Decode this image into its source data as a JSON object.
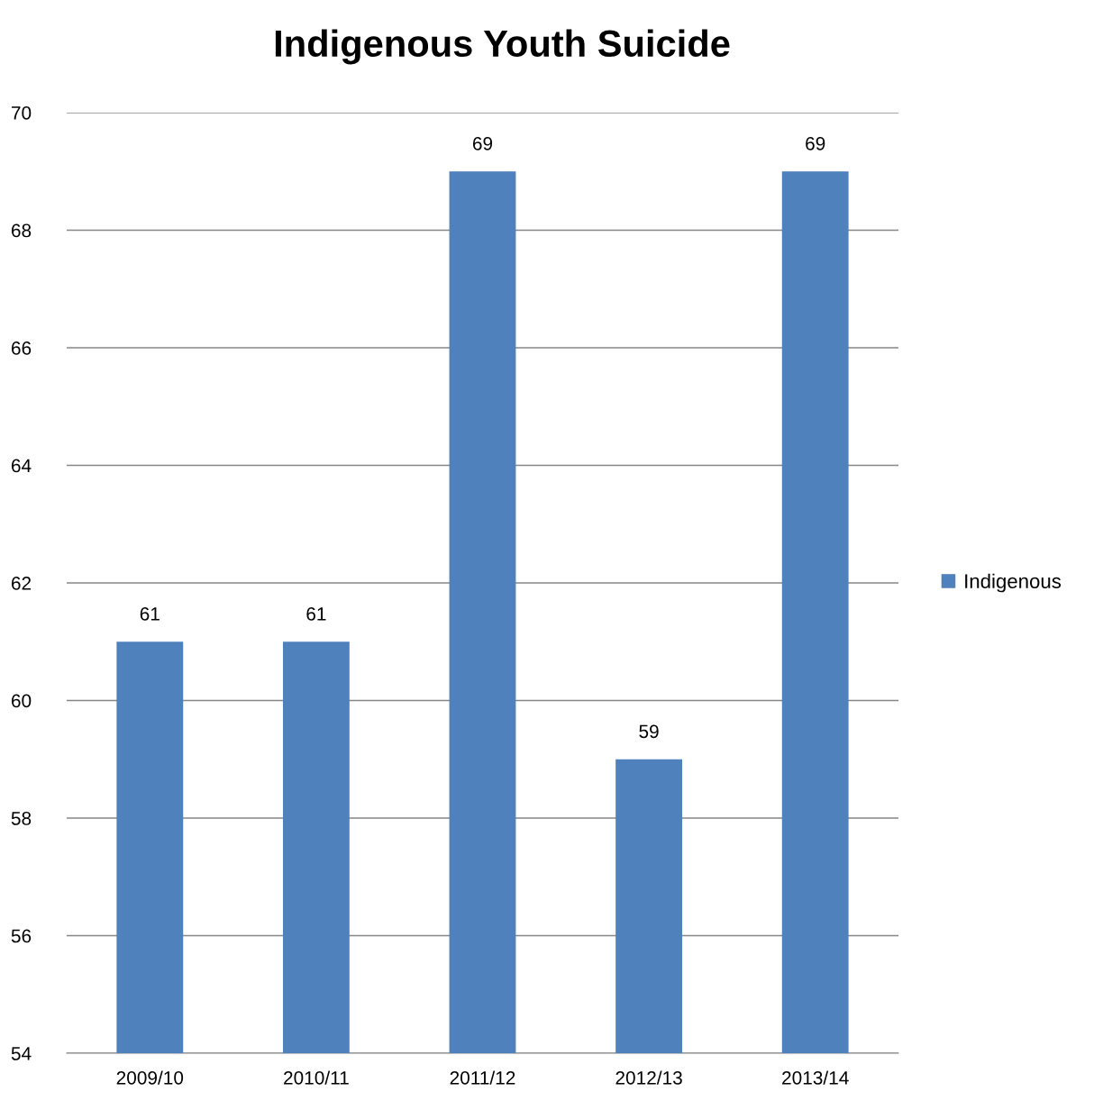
{
  "chart_data": {
    "type": "bar",
    "title": "Indigenous Youth Suicide",
    "categories": [
      "2009/10",
      "2010/11",
      "2011/12",
      "2012/13",
      "2013/14"
    ],
    "series": [
      {
        "name": "Indigenous",
        "color": "#4f81bd",
        "values": [
          61,
          61,
          69,
          59,
          69
        ]
      }
    ],
    "ylim": [
      54,
      70
    ],
    "yticks": [
      54,
      56,
      58,
      60,
      62,
      64,
      66,
      68,
      70
    ],
    "grid": "y",
    "legend": "right",
    "data_labels": true
  }
}
